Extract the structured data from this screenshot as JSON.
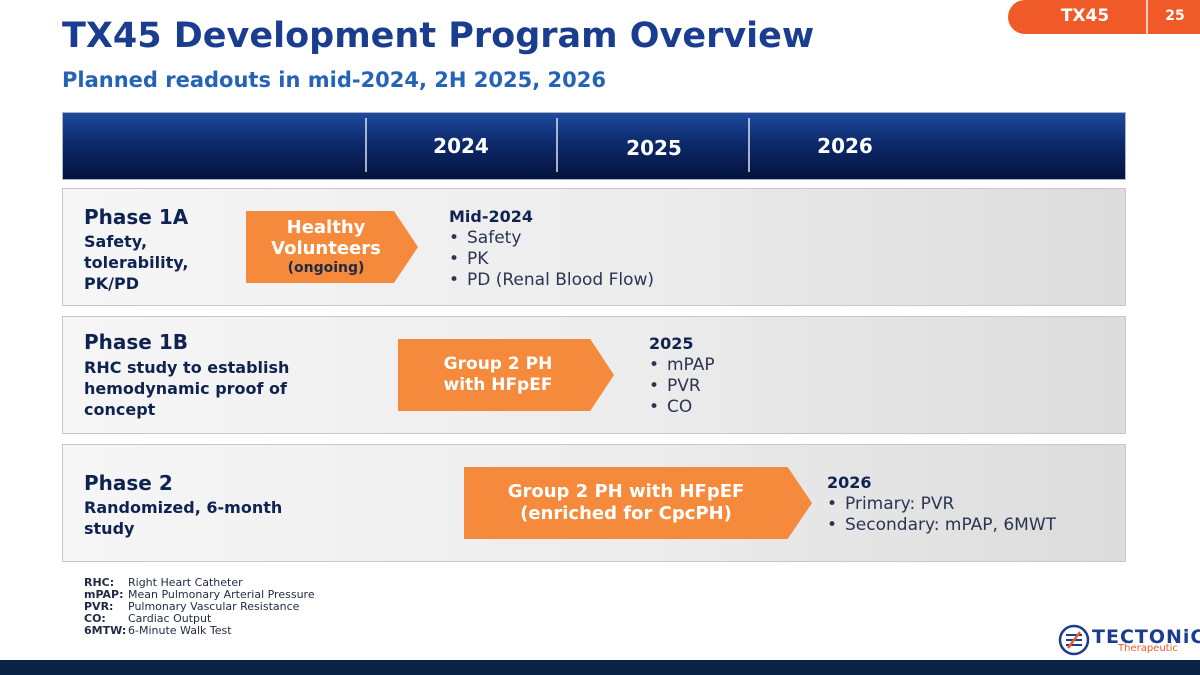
{
  "tab": {
    "label": "TX45",
    "page_number": "25"
  },
  "title": "TX45 Development Program Overview",
  "subtitle": "Planned readouts in mid-2024, 2H 2025, 2026",
  "timeline": {
    "years": [
      "2024",
      "2025",
      "2026"
    ]
  },
  "phases": [
    {
      "title": "Phase 1A",
      "description": [
        "Safety,",
        "tolerability,",
        "PK/PD"
      ],
      "arrow": {
        "line1": "Healthy",
        "line2": "Volunteers",
        "note": "(ongoing)"
      },
      "readout": {
        "heading": "Mid-2024",
        "items": [
          "Safety",
          "PK",
          "PD (Renal Blood Flow)"
        ]
      }
    },
    {
      "title": "Phase 1B",
      "description": [
        "RHC study to establish",
        "hemodynamic proof of",
        "concept"
      ],
      "arrow": {
        "line1": "Group 2 PH",
        "line2": "with HFpEF"
      },
      "readout": {
        "heading": "2025",
        "items": [
          "mPAP",
          "PVR",
          "CO"
        ]
      }
    },
    {
      "title": "Phase 2",
      "description": [
        "Randomized, 6-month",
        "study"
      ],
      "arrow": {
        "line1": "Group 2 PH with HFpEF",
        "line2": "(enriched for CpcPH)"
      },
      "readout": {
        "heading": "2026",
        "items": [
          "Primary: PVR",
          "Secondary: mPAP, 6MWT"
        ]
      }
    }
  ],
  "legend": [
    {
      "abbr": "RHC:",
      "def": "Right Heart Catheter"
    },
    {
      "abbr": "mPAP:",
      "def": "Mean Pulmonary Arterial Pressure"
    },
    {
      "abbr": "PVR:",
      "def": "Pulmonary Vascular Resistance"
    },
    {
      "abbr": "CO:",
      "def": "Cardiac Output"
    },
    {
      "abbr": "6MTW:",
      "def": "6-Minute Walk Test"
    }
  ],
  "logo": {
    "name": "TECTONiC",
    "sub": "Therapeutic"
  },
  "colors": {
    "accent": "#f05a28",
    "arrow": "#f58a3c",
    "navy": "#1b3d8f"
  }
}
